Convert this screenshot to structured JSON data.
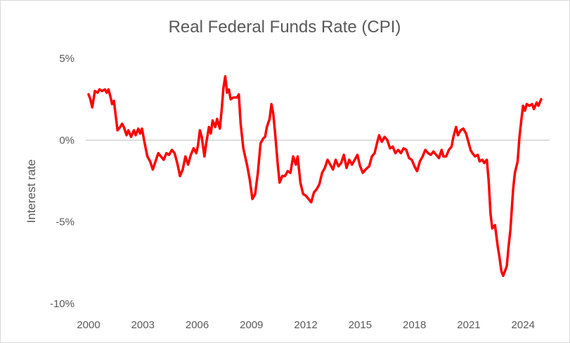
{
  "chart_data": {
    "type": "line",
    "title": "Real Federal Funds Rate (CPI)",
    "xlabel": "",
    "ylabel": "Interest rate",
    "xlim": [
      2000,
      2025
    ],
    "ylim": [
      -10,
      5
    ],
    "x_ticks": [
      2000,
      2003,
      2006,
      2009,
      2012,
      2015,
      2018,
      2021,
      2024
    ],
    "x_tick_labels": [
      "2000",
      "2003",
      "2006",
      "2009",
      "2012",
      "2015",
      "2018",
      "2021",
      "2024"
    ],
    "y_ticks": [
      5,
      0,
      -5,
      -10
    ],
    "y_tick_labels": [
      "5%",
      "0%",
      "-5%",
      "-10%"
    ],
    "grid": false,
    "zero_line": true,
    "line_color": "#ff0000",
    "zero_line_color": "#bfbfbf",
    "series": [
      {
        "values": [
          [
            2000.0,
            2.8
          ],
          [
            2000.1,
            2.5
          ],
          [
            2000.2,
            2.0
          ],
          [
            2000.35,
            3.0
          ],
          [
            2000.5,
            2.9
          ],
          [
            2000.6,
            3.1
          ],
          [
            2000.75,
            3.0
          ],
          [
            2000.9,
            3.1
          ],
          [
            2001.0,
            2.9
          ],
          [
            2001.1,
            3.1
          ],
          [
            2001.2,
            2.7
          ],
          [
            2001.3,
            2.2
          ],
          [
            2001.4,
            2.4
          ],
          [
            2001.5,
            1.5
          ],
          [
            2001.6,
            0.6
          ],
          [
            2001.75,
            0.8
          ],
          [
            2001.85,
            1.0
          ],
          [
            2001.95,
            0.8
          ],
          [
            2002.1,
            0.3
          ],
          [
            2002.2,
            0.6
          ],
          [
            2002.35,
            0.2
          ],
          [
            2002.5,
            0.6
          ],
          [
            2002.6,
            0.3
          ],
          [
            2002.75,
            0.7
          ],
          [
            2002.85,
            0.4
          ],
          [
            2002.95,
            0.7
          ],
          [
            2003.1,
            -0.2
          ],
          [
            2003.25,
            -1.0
          ],
          [
            2003.4,
            -1.3
          ],
          [
            2003.55,
            -1.8
          ],
          [
            2003.7,
            -1.3
          ],
          [
            2003.85,
            -0.8
          ],
          [
            2004.0,
            -1.0
          ],
          [
            2004.15,
            -1.2
          ],
          [
            2004.3,
            -0.8
          ],
          [
            2004.45,
            -0.9
          ],
          [
            2004.6,
            -0.6
          ],
          [
            2004.75,
            -0.8
          ],
          [
            2004.9,
            -1.4
          ],
          [
            2005.05,
            -2.2
          ],
          [
            2005.2,
            -1.8
          ],
          [
            2005.35,
            -1.0
          ],
          [
            2005.5,
            -1.5
          ],
          [
            2005.65,
            -0.9
          ],
          [
            2005.8,
            -0.5
          ],
          [
            2005.95,
            -0.8
          ],
          [
            2006.05,
            -0.3
          ],
          [
            2006.15,
            0.6
          ],
          [
            2006.25,
            0.2
          ],
          [
            2006.4,
            -1.0
          ],
          [
            2006.5,
            -0.2
          ],
          [
            2006.65,
            0.8
          ],
          [
            2006.75,
            0.4
          ],
          [
            2006.85,
            1.2
          ],
          [
            2007.0,
            0.8
          ],
          [
            2007.1,
            1.3
          ],
          [
            2007.25,
            0.7
          ],
          [
            2007.35,
            1.8
          ],
          [
            2007.45,
            3.2
          ],
          [
            2007.55,
            3.9
          ],
          [
            2007.65,
            2.9
          ],
          [
            2007.75,
            3.1
          ],
          [
            2007.85,
            2.5
          ],
          [
            2008.0,
            2.6
          ],
          [
            2008.2,
            2.6
          ],
          [
            2008.3,
            2.8
          ],
          [
            2008.4,
            1.0
          ],
          [
            2008.55,
            -0.5
          ],
          [
            2008.75,
            -1.5
          ],
          [
            2008.9,
            -2.4
          ],
          [
            2009.05,
            -3.6
          ],
          [
            2009.2,
            -3.3
          ],
          [
            2009.35,
            -2.0
          ],
          [
            2009.5,
            -0.2
          ],
          [
            2009.65,
            0.1
          ],
          [
            2009.75,
            0.2
          ],
          [
            2009.85,
            0.8
          ],
          [
            2010.0,
            1.3
          ],
          [
            2010.1,
            2.2
          ],
          [
            2010.2,
            1.6
          ],
          [
            2010.3,
            0.5
          ],
          [
            2010.45,
            -1.5
          ],
          [
            2010.55,
            -2.6
          ],
          [
            2010.7,
            -2.2
          ],
          [
            2010.85,
            -2.2
          ],
          [
            2011.0,
            -1.9
          ],
          [
            2011.15,
            -2.0
          ],
          [
            2011.3,
            -1.0
          ],
          [
            2011.45,
            -1.5
          ],
          [
            2011.55,
            -1.0
          ],
          [
            2011.7,
            -2.6
          ],
          [
            2011.85,
            -3.3
          ],
          [
            2012.0,
            -3.4
          ],
          [
            2012.15,
            -3.6
          ],
          [
            2012.3,
            -3.8
          ],
          [
            2012.45,
            -3.2
          ],
          [
            2012.6,
            -3.0
          ],
          [
            2012.75,
            -2.7
          ],
          [
            2012.9,
            -2.0
          ],
          [
            2013.05,
            -1.7
          ],
          [
            2013.2,
            -1.2
          ],
          [
            2013.35,
            -1.5
          ],
          [
            2013.5,
            -1.8
          ],
          [
            2013.65,
            -1.2
          ],
          [
            2013.8,
            -1.6
          ],
          [
            2013.95,
            -1.4
          ],
          [
            2014.1,
            -0.9
          ],
          [
            2014.25,
            -1.7
          ],
          [
            2014.4,
            -1.2
          ],
          [
            2014.55,
            -1.5
          ],
          [
            2014.7,
            -1.2
          ],
          [
            2014.85,
            -0.9
          ],
          [
            2015.0,
            -1.6
          ],
          [
            2015.15,
            -2.0
          ],
          [
            2015.3,
            -1.8
          ],
          [
            2015.5,
            -1.6
          ],
          [
            2015.65,
            -1.0
          ],
          [
            2015.8,
            -0.8
          ],
          [
            2015.95,
            -0.1
          ],
          [
            2016.05,
            0.3
          ],
          [
            2016.2,
            -0.1
          ],
          [
            2016.35,
            0.2
          ],
          [
            2016.5,
            0.0
          ],
          [
            2016.65,
            -0.5
          ],
          [
            2016.8,
            -0.4
          ],
          [
            2016.95,
            -0.8
          ],
          [
            2017.1,
            -0.6
          ],
          [
            2017.25,
            -0.8
          ],
          [
            2017.4,
            -0.5
          ],
          [
            2017.55,
            -0.6
          ],
          [
            2017.7,
            -1.1
          ],
          [
            2017.85,
            -1.2
          ],
          [
            2018.0,
            -1.6
          ],
          [
            2018.15,
            -1.9
          ],
          [
            2018.3,
            -1.3
          ],
          [
            2018.45,
            -1.0
          ],
          [
            2018.6,
            -0.6
          ],
          [
            2018.75,
            -0.8
          ],
          [
            2018.9,
            -0.9
          ],
          [
            2019.05,
            -0.7
          ],
          [
            2019.2,
            -0.9
          ],
          [
            2019.35,
            -1.1
          ],
          [
            2019.5,
            -0.6
          ],
          [
            2019.6,
            -1.0
          ],
          [
            2019.75,
            -1.0
          ],
          [
            2019.9,
            -0.6
          ],
          [
            2020.05,
            -0.4
          ],
          [
            2020.15,
            0.2
          ],
          [
            2020.3,
            0.8
          ],
          [
            2020.4,
            0.3
          ],
          [
            2020.55,
            0.6
          ],
          [
            2020.7,
            0.7
          ],
          [
            2020.85,
            0.4
          ],
          [
            2021.0,
            -0.2
          ],
          [
            2021.1,
            -0.6
          ],
          [
            2021.2,
            -0.8
          ],
          [
            2021.35,
            -1.0
          ],
          [
            2021.5,
            -0.9
          ],
          [
            2021.6,
            -1.3
          ],
          [
            2021.75,
            -1.2
          ],
          [
            2021.85,
            -1.4
          ],
          [
            2022.0,
            -1.2
          ],
          [
            2022.1,
            -2.5
          ],
          [
            2022.2,
            -4.5
          ],
          [
            2022.3,
            -5.4
          ],
          [
            2022.45,
            -5.2
          ],
          [
            2022.6,
            -6.5
          ],
          [
            2022.7,
            -7.2
          ],
          [
            2022.8,
            -8.0
          ],
          [
            2022.9,
            -8.3
          ],
          [
            2023.0,
            -8.0
          ],
          [
            2023.1,
            -7.7
          ],
          [
            2023.2,
            -6.5
          ],
          [
            2023.3,
            -5.5
          ],
          [
            2023.45,
            -3.0
          ],
          [
            2023.55,
            -2.0
          ],
          [
            2023.7,
            -1.3
          ],
          [
            2023.8,
            0.2
          ],
          [
            2023.9,
            1.2
          ],
          [
            2024.0,
            2.1
          ],
          [
            2024.1,
            1.8
          ],
          [
            2024.2,
            2.2
          ],
          [
            2024.35,
            2.1
          ],
          [
            2024.5,
            2.2
          ],
          [
            2024.6,
            1.9
          ],
          [
            2024.75,
            2.3
          ],
          [
            2024.85,
            2.1
          ],
          [
            2025.0,
            2.5
          ]
        ]
      }
    ]
  }
}
